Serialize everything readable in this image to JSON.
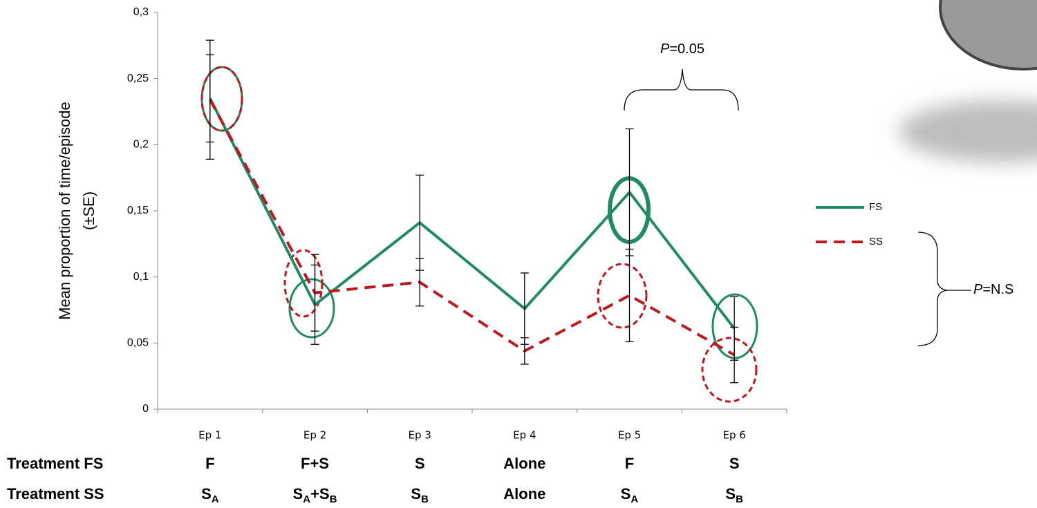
{
  "chart_data": {
    "type": "line",
    "y_label": [
      "Mean proportion of time/episode",
      "(±SE)"
    ],
    "categories": [
      "Ep 1",
      "Ep 2",
      "Ep 3",
      "Ep 4",
      "Ep 5",
      "Ep 6"
    ],
    "series": [
      {
        "name": "FS",
        "color": "#1f8a64",
        "line_style": "solid",
        "values": [
          0.235,
          0.079,
          0.141,
          0.076,
          0.164,
          0.061
        ],
        "errors": [
          0.033,
          0.03,
          0.036,
          0.027,
          0.048,
          0.024
        ]
      },
      {
        "name": "SS",
        "color": "#c0161d",
        "line_style": "dashed",
        "values": [
          0.234,
          0.088,
          0.096,
          0.044,
          0.086,
          0.041
        ],
        "errors": [
          0.045,
          0.029,
          0.018,
          0.01,
          0.035,
          0.021
        ]
      }
    ],
    "ylim": [
      0,
      0.3
    ],
    "yticks": [
      0,
      {
        "value": 0.05,
        "label": "0,05"
      },
      {
        "value": 0.1,
        "label": "0,1"
      },
      {
        "value": 0.15,
        "label": "0,15"
      },
      {
        "value": 0.2,
        "label": "0,2"
      },
      {
        "value": 0.25,
        "label": "0,25"
      },
      {
        "value": 0.3,
        "label": "0,3"
      }
    ],
    "legend": "right",
    "annotations": [
      {
        "prefix": "P",
        "text": "=0.05"
      },
      {
        "prefix": "P",
        "text": "=N.S"
      }
    ],
    "treatments": [
      {
        "label": "Treatment FS",
        "cells": [
          [
            {
              "t": "F"
            }
          ],
          [
            {
              "t": "F+S"
            }
          ],
          [
            {
              "t": "S"
            }
          ],
          [
            {
              "t": "Alone"
            }
          ],
          [
            {
              "t": "F"
            }
          ],
          [
            {
              "t": "S"
            }
          ]
        ]
      },
      {
        "label": "Treatment SS",
        "cells": [
          [
            {
              "t": "S",
              "sub": "A"
            }
          ],
          [
            {
              "t": "S",
              "sub": "A"
            },
            {
              "t": "+S",
              "sub": "B"
            }
          ],
          [
            {
              "t": "S",
              "sub": "B"
            }
          ],
          [
            {
              "t": "Alone"
            }
          ],
          [
            {
              "t": "S",
              "sub": "A"
            }
          ],
          [
            {
              "t": "S",
              "sub": "B"
            }
          ]
        ]
      }
    ]
  }
}
